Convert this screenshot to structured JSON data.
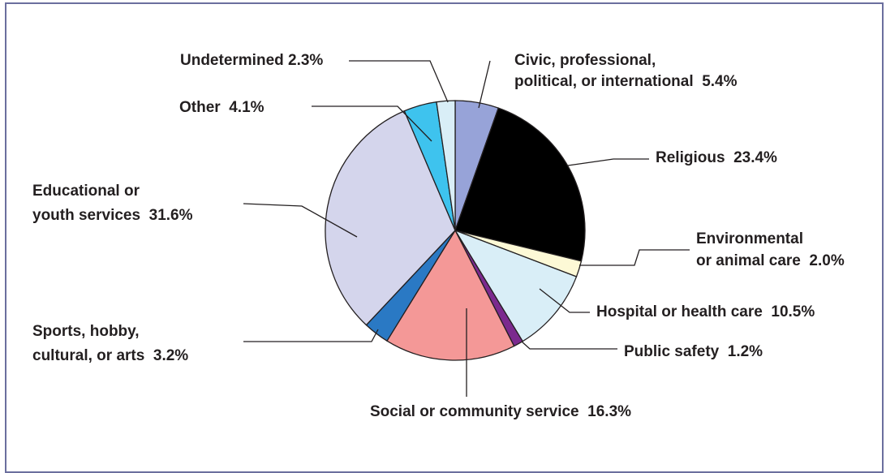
{
  "chart_data": {
    "type": "pie",
    "title": "",
    "slices": [
      {
        "label_lines": [
          "Civic, professional,",
          "political, or international  5.4%"
        ],
        "value": 5.4,
        "color": "#97a3d8"
      },
      {
        "label_lines": [
          "Religious  23.4%"
        ],
        "value": 23.4,
        "color": "#000000"
      },
      {
        "label_lines": [
          "Environmental",
          "or animal care  2.0%"
        ],
        "value": 2.0,
        "color": "#fdf9d6"
      },
      {
        "label_lines": [
          "Hospital or health care  10.5%"
        ],
        "value": 10.5,
        "color": "#d9eef7"
      },
      {
        "label_lines": [
          "Public safety  1.2%"
        ],
        "value": 1.2,
        "color": "#7b2a8e"
      },
      {
        "label_lines": [
          "Social or community service  16.3%"
        ],
        "value": 16.3,
        "color": "#f49897"
      },
      {
        "label_lines": [
          "Sports, hobby,",
          "cultural, or arts  3.2%"
        ],
        "value": 3.2,
        "color": "#2a79c4"
      },
      {
        "label_lines": [
          "Educational or",
          "youth services  31.6%"
        ],
        "value": 31.6,
        "color": "#d4d5ec"
      },
      {
        "label_lines": [
          "Other  4.1%"
        ],
        "value": 4.1,
        "color": "#3ec3ee"
      },
      {
        "label_lines": [
          "Undetermined 2.3%"
        ],
        "value": 2.3,
        "color": "#d9eef7"
      }
    ],
    "start_angle": "12 o'clock",
    "direction": "clockwise",
    "legend": "none (callout labels)"
  }
}
